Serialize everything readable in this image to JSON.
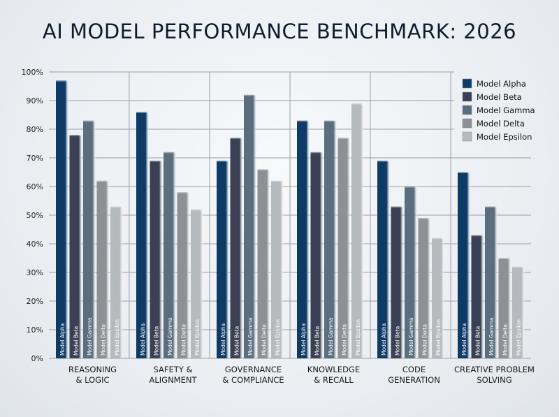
{
  "chart_data": {
    "type": "bar",
    "title": "AI MODEL PERFORMANCE BENCHMARK: 2026",
    "xlabel": "",
    "ylabel": "",
    "ylim": [
      0,
      100
    ],
    "yticks": [
      "0%",
      "10%",
      "20%",
      "30%",
      "40%",
      "50%",
      "60%",
      "70%",
      "80%",
      "90%",
      "100%"
    ],
    "grid": true,
    "legend_position": "top-right",
    "categories": [
      [
        "REASONING",
        "& LOGIC"
      ],
      [
        "SAFETY &",
        "ALIGNMENT"
      ],
      [
        "GOVERNANCE",
        "& COMPLIANCE"
      ],
      [
        "KNOWLEDGE",
        "& RECALL"
      ],
      [
        "CODE",
        "GENERATION"
      ],
      [
        "CREATIVE PROBLEM",
        "SOLVING"
      ]
    ],
    "series": [
      {
        "name": "Model Alpha",
        "color": "#0e3a66",
        "values": [
          97,
          86,
          69,
          83,
          69,
          65
        ]
      },
      {
        "name": "Model Beta",
        "color": "#3b4154",
        "values": [
          78,
          69,
          77,
          72,
          53,
          43
        ]
      },
      {
        "name": "Model Gamma",
        "color": "#5a6e7e",
        "values": [
          83,
          72,
          92,
          83,
          60,
          53
        ]
      },
      {
        "name": "Model Delta",
        "color": "#8d9195",
        "values": [
          62,
          58,
          66,
          77,
          49,
          35
        ]
      },
      {
        "name": "Model Epsilon",
        "color": "#b5babf",
        "values": [
          53,
          52,
          62,
          89,
          42,
          32
        ]
      }
    ]
  }
}
